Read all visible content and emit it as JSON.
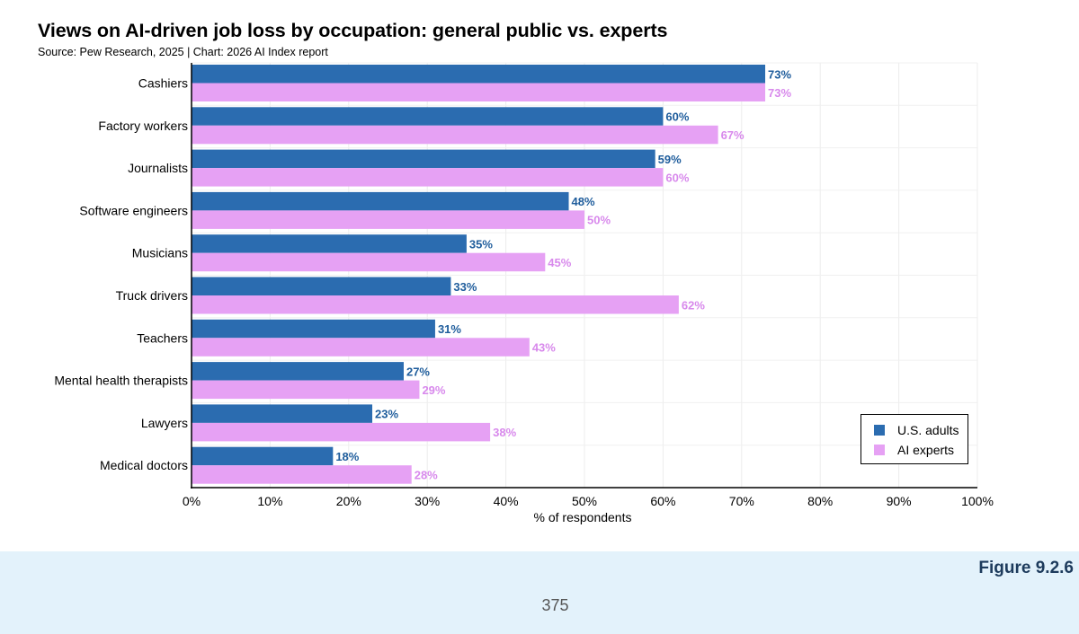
{
  "chart_data": {
    "type": "bar",
    "orientation": "horizontal",
    "title": "Views on AI-driven job loss by occupation: general public vs. experts",
    "subtitle": "Source: Pew Research, 2025 | Chart: 2026 AI Index report",
    "categories": [
      "Cashiers",
      "Factory workers",
      "Journalists",
      "Software engineers",
      "Musicians",
      "Truck drivers",
      "Teachers",
      "Mental health therapists",
      "Lawyers",
      "Medical doctors"
    ],
    "series": [
      {
        "name": "U.S. adults",
        "color": "#2b6cb0",
        "label_color": "#1f5d9c",
        "values": [
          73,
          60,
          59,
          48,
          35,
          33,
          31,
          27,
          23,
          18
        ]
      },
      {
        "name": "AI experts",
        "color": "#e6a1f4",
        "label_color": "#d889ec",
        "values": [
          73,
          67,
          60,
          50,
          45,
          62,
          43,
          29,
          38,
          28
        ]
      }
    ],
    "xlabel": "% of respondents",
    "ylabel": "",
    "xlim": [
      0,
      100
    ],
    "xticks": [
      "0%",
      "10%",
      "20%",
      "30%",
      "40%",
      "50%",
      "60%",
      "70%",
      "80%",
      "90%",
      "100%"
    ],
    "grid": true,
    "legend_position": "bottom-right"
  },
  "footer": {
    "figure_label": "Figure 9.2.6",
    "page_number": "375"
  }
}
